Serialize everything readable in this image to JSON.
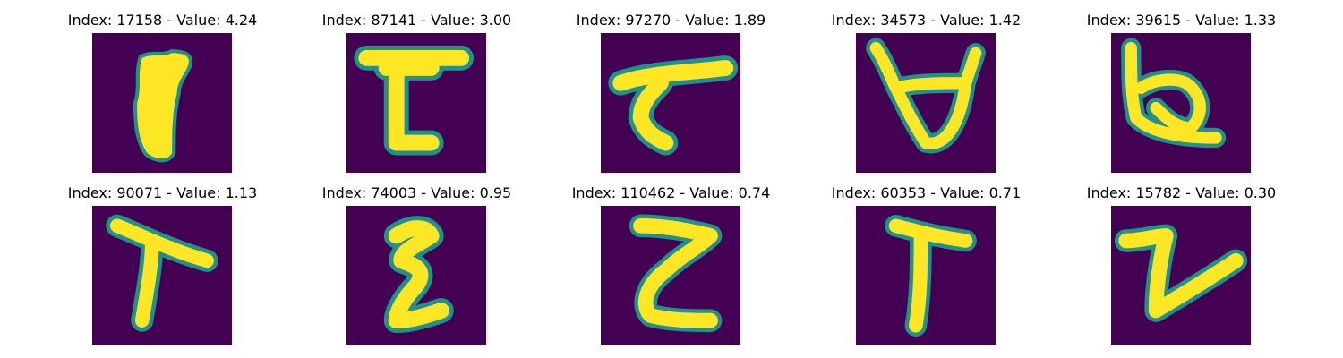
{
  "colors": {
    "background": "#440154",
    "mid": "#21918c",
    "stroke": "#fde725"
  },
  "panels": [
    {
      "title": "Index: 17158 - Value: 4.24",
      "glyph": "blob-1"
    },
    {
      "title": "Index: 87141 - Value: 3.00",
      "glyph": "T-shape"
    },
    {
      "title": "Index: 97270 - Value: 1.89",
      "glyph": "slanted-7"
    },
    {
      "title": "Index: 34573 - Value: 1.42",
      "glyph": "horned-loop"
    },
    {
      "title": "Index: 39615 - Value: 1.33",
      "glyph": "looped-b"
    },
    {
      "title": "Index: 90071 - Value: 1.13",
      "glyph": "bent-T"
    },
    {
      "title": "Index: 74003 - Value: 0.95",
      "glyph": "zigzag-3"
    },
    {
      "title": "Index: 110462 - Value: 0.74",
      "glyph": "z-curve"
    },
    {
      "title": "Index: 60353 - Value: 0.71",
      "glyph": "tall-T"
    },
    {
      "title": "Index: 15782 - Value: 0.30",
      "glyph": "v-check"
    }
  ]
}
